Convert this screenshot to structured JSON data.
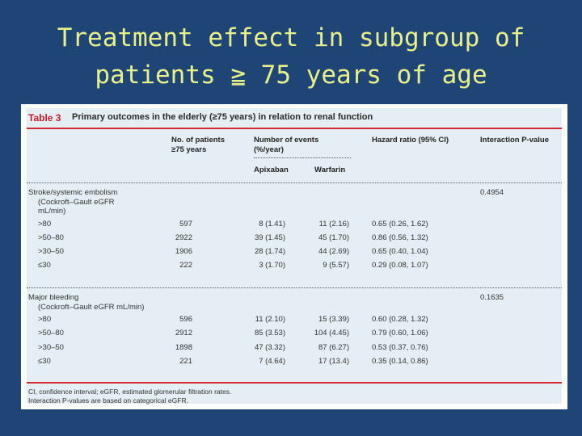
{
  "slide": {
    "title_line1": "Treatment effect in subgroup of",
    "title_line2": "patients ≧ 75 years of age"
  },
  "table": {
    "label": "Table 3",
    "caption": "Primary outcomes in the elderly (≥75 years) in relation to renal function",
    "headers": {
      "patients_line1": "No. of patients",
      "patients_line2": "≥75 years",
      "events_line1": "Number of events",
      "events_line2": "(%/year)",
      "apixaban": "Apixaban",
      "warfarin": "Warfarin",
      "hazard": "Hazard ratio (95% CI)",
      "interaction": "Interaction P-value"
    },
    "sections": [
      {
        "title_lines": [
          "Stroke/systemic embolism",
          "(Cockroft–Gault eGFR",
          "mL/min)"
        ],
        "p_value": "0.4954",
        "rows": [
          {
            "group": ">80",
            "n": "597",
            "apixaban": "8 (1.41)",
            "warfarin": "11 (2.16)",
            "hr": "0.65 (0.26, 1.62)"
          },
          {
            "group": ">50–80",
            "n": "2922",
            "apixaban": "39 (1.45)",
            "warfarin": "45 (1.70)",
            "hr": "0.86 (0.56, 1.32)"
          },
          {
            "group": ">30–50",
            "n": "1906",
            "apixaban": "28 (1.74)",
            "warfarin": "44 (2.69)",
            "hr": "0.65 (0.40, 1.04)"
          },
          {
            "group": "≤30",
            "n": "222",
            "apixaban": "3 (1.70)",
            "warfarin": "9 (5.57)",
            "hr": "0.29 (0.08, 1.07)"
          }
        ]
      },
      {
        "title_lines": [
          "Major bleeding",
          "(Cockroft–Gault eGFR mL/min)"
        ],
        "p_value": "0.1635",
        "rows": [
          {
            "group": ">80",
            "n": "596",
            "apixaban": "11 (2.10)",
            "warfarin": "15 (3.39)",
            "hr": "0.60 (0.28, 1.32)"
          },
          {
            "group": ">50–80",
            "n": "2912",
            "apixaban": "85 (3.53)",
            "warfarin": "104 (4.45)",
            "hr": "0.79 (0.60, 1.06)"
          },
          {
            "group": ">30–50",
            "n": "1898",
            "apixaban": "47 (3.32)",
            "warfarin": "87 (6.27)",
            "hr": "0.53 (0.37, 0.76)"
          },
          {
            "group": "≤30",
            "n": "221",
            "apixaban": "7 (4.64)",
            "warfarin": "17 (13.4)",
            "hr": "0.35 (0.14, 0.86)"
          }
        ]
      }
    ],
    "footnote_line1": "CI, confidence interval; eGFR, estimated glomerular filtration rates.",
    "footnote_line2": "Interaction P-values are based on categorical eGFR."
  }
}
